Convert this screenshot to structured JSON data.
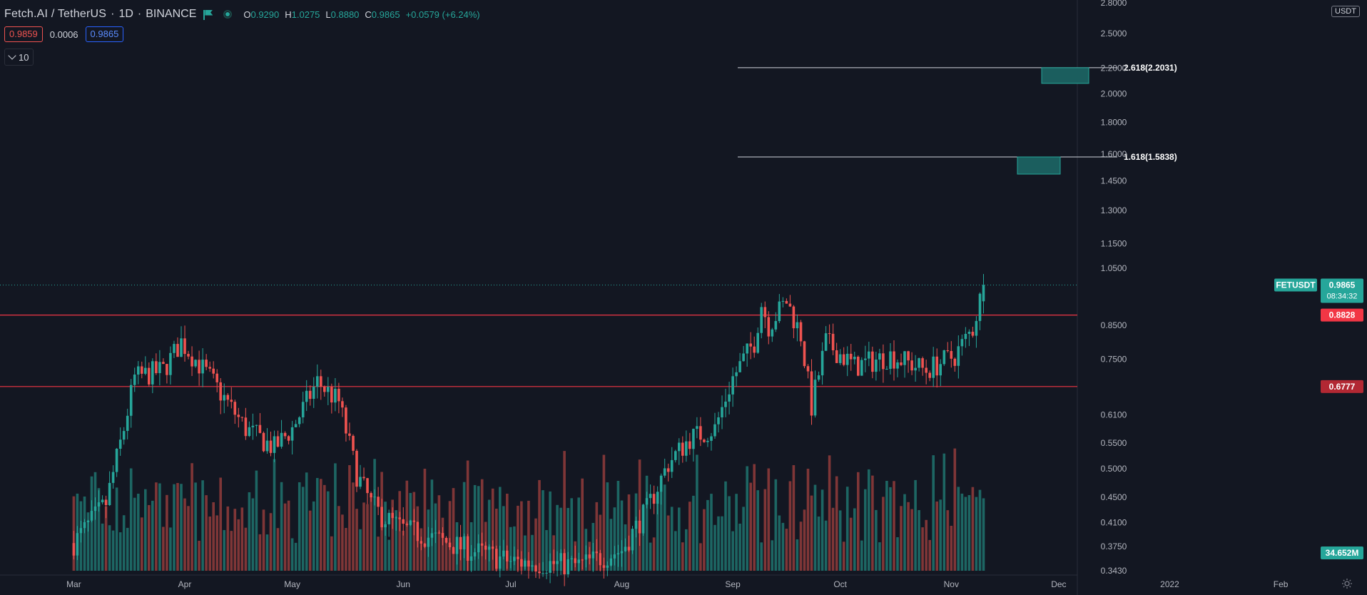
{
  "header": {
    "symbol": "Fetch.AI / TetherUS",
    "interval": "1D",
    "exchange": "BINANCE",
    "open_label": "O",
    "open": "0.9290",
    "high_label": "H",
    "high": "1.0275",
    "low_label": "L",
    "low": "0.8880",
    "close_label": "C",
    "close": "0.9865",
    "change": "+0.0579 (+6.24%)"
  },
  "trade": {
    "sell_price": "0.9859",
    "spread": "0.0006",
    "buy_price": "0.9865",
    "quantity": "10"
  },
  "axis_unit": "USDT",
  "colors": {
    "background": "#131722",
    "up": "#26a69a",
    "down": "#ef5350",
    "level_line": "#f23645",
    "grid_text": "#b2b5be"
  },
  "chart_data": {
    "type": "candlestick",
    "scale": "log",
    "yticks": [
      "0.3430",
      "0.3750",
      "0.4100",
      "0.4500",
      "0.5000",
      "0.5500",
      "0.6100",
      "0.6777",
      "0.7500",
      "0.8500",
      "0.8828",
      "0.9865",
      "1.0500",
      "1.1500",
      "1.3000",
      "1.4500",
      "1.6000",
      "1.8000",
      "2.0000",
      "2.2000",
      "2.5000",
      "2.8000"
    ],
    "ylim": [
      0.343,
      2.8
    ],
    "xticks": [
      "Mar",
      "Apr",
      "May",
      "Jun",
      "Jul",
      "Aug",
      "Sep",
      "Oct",
      "Nov",
      "Dec",
      "2022",
      "Feb"
    ],
    "candle_period": "1D",
    "series_anchors": [
      {
        "date": "2021-03-01",
        "close": 0.38
      },
      {
        "date": "2021-03-10",
        "close": 0.44
      },
      {
        "date": "2021-03-15",
        "close": 0.58
      },
      {
        "date": "2021-03-18",
        "close": 0.7
      },
      {
        "date": "2021-03-26",
        "close": 0.72
      },
      {
        "date": "2021-03-31",
        "close": 0.8
      },
      {
        "date": "2021-04-08",
        "close": 0.7
      },
      {
        "date": "2021-04-18",
        "close": 0.58
      },
      {
        "date": "2021-04-26",
        "close": 0.54
      },
      {
        "date": "2021-05-01",
        "close": 0.58
      },
      {
        "date": "2021-05-08",
        "close": 0.69
      },
      {
        "date": "2021-05-14",
        "close": 0.64
      },
      {
        "date": "2021-05-19",
        "close": 0.49
      },
      {
        "date": "2021-05-23",
        "close": 0.44
      },
      {
        "date": "2021-05-26",
        "close": 0.42
      },
      {
        "date": "2021-06-01",
        "close": 0.4
      },
      {
        "date": "2021-06-20",
        "close": 0.37
      },
      {
        "date": "2021-07-01",
        "close": 0.355
      },
      {
        "date": "2021-07-20",
        "close": 0.35
      },
      {
        "date": "2021-08-01",
        "close": 0.37
      },
      {
        "date": "2021-08-08",
        "close": 0.43
      },
      {
        "date": "2021-08-14",
        "close": 0.51
      },
      {
        "date": "2021-08-20",
        "close": 0.56
      },
      {
        "date": "2021-08-27",
        "close": 0.58
      },
      {
        "date": "2021-09-01",
        "close": 0.7
      },
      {
        "date": "2021-09-07",
        "close": 0.8
      },
      {
        "date": "2021-09-09",
        "close": 0.92
      },
      {
        "date": "2021-09-11",
        "close": 0.85
      },
      {
        "date": "2021-09-16",
        "close": 0.93
      },
      {
        "date": "2021-09-20",
        "close": 0.82
      },
      {
        "date": "2021-09-23",
        "close": 0.63
      },
      {
        "date": "2021-09-27",
        "close": 0.8
      },
      {
        "date": "2021-10-05",
        "close": 0.73
      },
      {
        "date": "2021-10-15",
        "close": 0.76
      },
      {
        "date": "2021-10-25",
        "close": 0.72
      },
      {
        "date": "2021-11-02",
        "close": 0.76
      },
      {
        "date": "2021-11-07",
        "close": 0.84
      },
      {
        "date": "2021-11-10",
        "close": 0.9865
      }
    ],
    "volume_last": "34.652M",
    "price_labels": [
      {
        "text": "FETUSDT",
        "price": 0.9865,
        "color": "#26a69a"
      },
      {
        "text": "0.9865",
        "price": 0.9865,
        "color": "#26a69a",
        "sub": "08:34:32"
      },
      {
        "text": "0.8828",
        "price": 0.8828,
        "color": "#f23645"
      },
      {
        "text": "0.6777",
        "price": 0.6777,
        "color": "#f23645"
      }
    ],
    "horizontal_levels": [
      0.8828,
      0.6777
    ],
    "fib_targets": [
      {
        "label": "2.618(2.2031)",
        "price": 2.2031
      },
      {
        "label": "1.618(1.5838)",
        "price": 1.5838
      }
    ]
  }
}
